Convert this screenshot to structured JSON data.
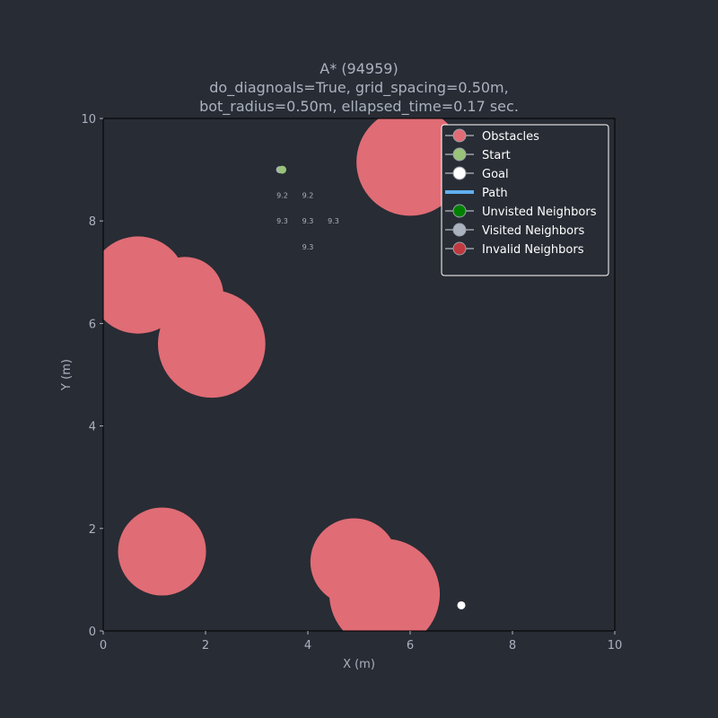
{
  "chart_data": {
    "type": "scatter",
    "title_lines": [
      "A* (94959)",
      "do_diagnoals=True, grid_spacing=0.50m,",
      "bot_radius=0.50m, ellapsed_time=0.17 sec."
    ],
    "xlabel": "X (m)",
    "ylabel": "Y (m)",
    "xlim": [
      0,
      10
    ],
    "ylim": [
      0,
      10
    ],
    "xticks": [
      0,
      2,
      4,
      6,
      8,
      10
    ],
    "yticks": [
      0,
      2,
      4,
      6,
      8,
      10
    ],
    "grid": false,
    "legend_placement": "top-right",
    "colors": {
      "background": "#282c34",
      "axes_text": "#abb2bf",
      "obstacle": "#e06c75",
      "start": "#98c379",
      "goal": "#ffffff",
      "path": "#61afef",
      "unvisited": "#008000",
      "visited": "#abb2bf",
      "invalid": "#be3a3f"
    },
    "obstacles": [
      {
        "x": 6.0,
        "y": 9.15,
        "r": 1.05
      },
      {
        "x": 0.68,
        "y": 6.75,
        "r": 0.95
      },
      {
        "x": 1.6,
        "y": 6.55,
        "r": 0.75
      },
      {
        "x": 2.12,
        "y": 5.6,
        "r": 1.05
      },
      {
        "x": 1.15,
        "y": 1.55,
        "r": 0.86
      },
      {
        "x": 4.9,
        "y": 1.35,
        "r": 0.85
      },
      {
        "x": 5.5,
        "y": 0.72,
        "r": 1.08
      }
    ],
    "start": {
      "x": 3.5,
      "y": 9.0
    },
    "goal": {
      "x": 7.0,
      "y": 0.5
    },
    "visited_neighbors": [
      {
        "x": 3.45,
        "y": 9.0
      }
    ],
    "cost_labels": [
      {
        "x": 3.5,
        "y": 8.5,
        "text": "9.2"
      },
      {
        "x": 4.0,
        "y": 8.5,
        "text": "9.2"
      },
      {
        "x": 3.5,
        "y": 8.0,
        "text": "9.3"
      },
      {
        "x": 4.0,
        "y": 8.0,
        "text": "9.3"
      },
      {
        "x": 4.5,
        "y": 8.0,
        "text": "9.3"
      },
      {
        "x": 4.0,
        "y": 7.5,
        "text": "9.3"
      }
    ],
    "legend": [
      {
        "label": "Obstacles",
        "kind": "marker",
        "color_key": "obstacle"
      },
      {
        "label": "Start",
        "kind": "marker",
        "color_key": "start"
      },
      {
        "label": "Goal",
        "kind": "marker",
        "color_key": "goal"
      },
      {
        "label": "Path",
        "kind": "line",
        "color_key": "path"
      },
      {
        "label": "Unvisted Neighbors",
        "kind": "marker",
        "color_key": "unvisited"
      },
      {
        "label": "Visited Neighbors",
        "kind": "marker",
        "color_key": "visited"
      },
      {
        "label": "Invalid Neighbors",
        "kind": "marker",
        "color_key": "invalid"
      }
    ]
  }
}
